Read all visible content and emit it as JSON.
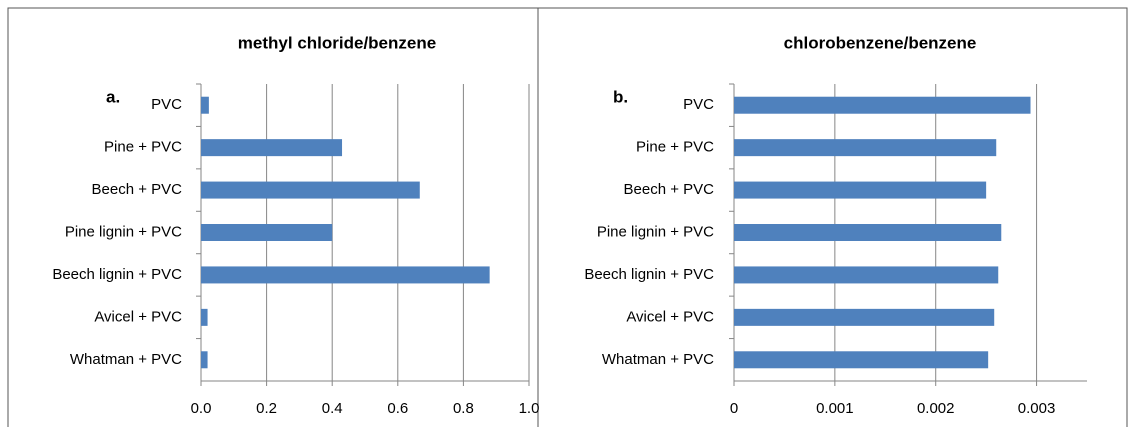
{
  "chart_data": [
    {
      "type": "barh",
      "title": "methyl chloride/benzene",
      "annotation": "a.",
      "categories": [
        "PVC",
        "Pine + PVC",
        "Beech + PVC",
        "Pine lignin + PVC",
        "Beech lignin + PVC",
        "Avicel + PVC",
        "Whatman + PVC"
      ],
      "values": [
        0.024,
        0.43,
        0.667,
        0.4,
        0.88,
        0.02,
        0.02
      ],
      "color": "#4f81bd",
      "xlim": [
        0,
        1.0
      ],
      "xticks": [
        {
          "value": 0,
          "label": "0.0"
        },
        0.2,
        0.4,
        0.6,
        0.8,
        {
          "value": 1.0,
          "label": "1.0"
        }
      ],
      "grid": true
    },
    {
      "type": "barh",
      "title": "chlorobenzene/benzene",
      "annotation": "b.",
      "categories": [
        "PVC",
        "Pine + PVC",
        "Beech + PVC",
        "Pine lignin + PVC",
        "Beech lignin + PVC",
        "Avicel + PVC",
        "Whatman + PVC"
      ],
      "values": [
        0.00294,
        0.0026,
        0.0025,
        0.00265,
        0.00262,
        0.00258,
        0.00252
      ],
      "color": "#4f81bd",
      "xlim": [
        0,
        0.0035
      ],
      "xticks": [
        0,
        0.001,
        0.002,
        0.003
      ],
      "grid": true
    }
  ]
}
